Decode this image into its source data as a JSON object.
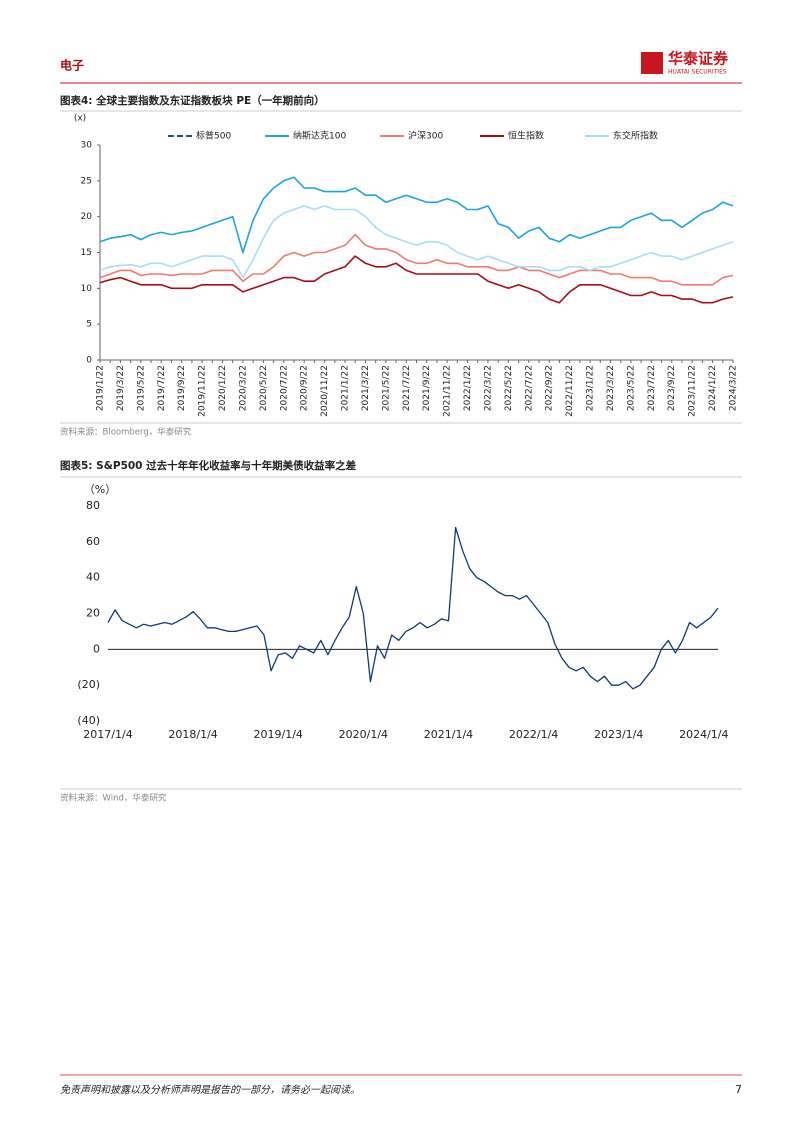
{
  "header": {
    "section": "电子",
    "brand": "华泰证券",
    "brand_en": "HUATAI SECURITIES"
  },
  "chart_data": [
    {
      "type": "line",
      "title": "图表4:  全球主要指数及东证指数板块 PE（一年期前向）",
      "y_label": "(x)",
      "source": "资料来源：Bloomberg，华泰研究",
      "ylim": [
        0,
        30
      ],
      "yticks": [
        0,
        5,
        10,
        15,
        20,
        25,
        30
      ],
      "grid": false,
      "categories": [
        "2019/1/22",
        null,
        "2019/3/22",
        null,
        "2019/5/22",
        null,
        "2019/7/22",
        null,
        "2019/9/22",
        null,
        "2019/11/22",
        null,
        "2020/1/22",
        null,
        "2020/3/22",
        null,
        "2020/5/22",
        null,
        "2020/7/22",
        null,
        "2020/9/22",
        null,
        "2020/11/22",
        null,
        "2021/1/22",
        null,
        "2021/3/22",
        null,
        "2021/5/22",
        null,
        "2021/7/22",
        null,
        "2021/9/22",
        null,
        "2021/11/22",
        null,
        "2022/1/22",
        null,
        "2022/3/22",
        null,
        "2022/5/22",
        null,
        "2022/7/22",
        null,
        "2022/9/22",
        null,
        "2022/11/22",
        null,
        "2023/1/22",
        null,
        "2023/3/22",
        null,
        "2023/5/22",
        null,
        "2023/7/22",
        null,
        "2023/9/22",
        null,
        "2023/11/22",
        null,
        "2024/1/22",
        null,
        "2024/3/22"
      ],
      "series": [
        {
          "name": "标普500",
          "color": "#1f4e9a",
          "dashed": true,
          "values": [
            null,
            null,
            null,
            null,
            null,
            null,
            null,
            null,
            null,
            null,
            null,
            null,
            null,
            null,
            null,
            null,
            null,
            null,
            null,
            null,
            null,
            null,
            null,
            null,
            null,
            null,
            null,
            null,
            null,
            null,
            null,
            null,
            null,
            null,
            null,
            null,
            null,
            null,
            null,
            null,
            null,
            null,
            null,
            null,
            null,
            null,
            null,
            null,
            null,
            null,
            null,
            null,
            null,
            null,
            null,
            null,
            null,
            null,
            null,
            null,
            null,
            null,
            null
          ]
        },
        {
          "name": "纳斯达克100",
          "color": "#1ea3dc",
          "dashed": false,
          "values": [
            16.5,
            17,
            17.2,
            17.5,
            16.8,
            17.5,
            17.8,
            17.5,
            17.8,
            18,
            18.5,
            19,
            19.5,
            20,
            15,
            19.5,
            22.5,
            24,
            25,
            25.5,
            24,
            24,
            23.5,
            23.5,
            23.5,
            24,
            23,
            23,
            22,
            22.5,
            23,
            22.5,
            22,
            22,
            22.5,
            22,
            21,
            21,
            21.5,
            19,
            18.5,
            17,
            18,
            18.5,
            17,
            16.5,
            17.5,
            17,
            17.5,
            18,
            18.5,
            18.5,
            19.5,
            20,
            20.5,
            19.5,
            19.5,
            18.5,
            19.5,
            20.5,
            21,
            22,
            21.5
          ]
        },
        {
          "name": "沪深300",
          "color": "#f07a6e",
          "dashed": false,
          "values": [
            11.5,
            12,
            12.5,
            12.5,
            11.8,
            12,
            12,
            11.8,
            12,
            12,
            12,
            12.5,
            12.5,
            12.5,
            11,
            12,
            12,
            13,
            14.5,
            15,
            14.5,
            15,
            15,
            15.5,
            16,
            17.5,
            16,
            15.5,
            15.5,
            15,
            14,
            13.5,
            13.5,
            14,
            13.5,
            13.5,
            13,
            13,
            13,
            12.5,
            12.5,
            13,
            12.5,
            12.5,
            12,
            11.5,
            12,
            12.5,
            12.5,
            12.5,
            12,
            12,
            11.5,
            11.5,
            11.5,
            11,
            11,
            10.5,
            10.5,
            10.5,
            10.5,
            11.5,
            11.8
          ]
        },
        {
          "name": "恒生指数",
          "color": "#a50f15",
          "dashed": false,
          "values": [
            10.8,
            11.2,
            11.5,
            11,
            10.5,
            10.5,
            10.5,
            10,
            10,
            10,
            10.5,
            10.5,
            10.5,
            10.5,
            9.5,
            10,
            10.5,
            11,
            11.5,
            11.5,
            11,
            11,
            12,
            12.5,
            13,
            14.5,
            13.5,
            13,
            13,
            13.5,
            12.5,
            12,
            12,
            12,
            12,
            12,
            12,
            12,
            11,
            10.5,
            10,
            10.5,
            10,
            9.5,
            8.5,
            8,
            9.5,
            10.5,
            10.5,
            10.5,
            10,
            9.5,
            9,
            9,
            9.5,
            9,
            9,
            8.5,
            8.5,
            8,
            8,
            8.5,
            8.8
          ]
        },
        {
          "name": "东交所指数",
          "color": "#a8def5",
          "dashed": false,
          "values": [
            12.5,
            13,
            13.2,
            13.3,
            13,
            13.5,
            13.5,
            13,
            13.5,
            14,
            14.5,
            14.5,
            14.5,
            14,
            11.5,
            14,
            17,
            19.5,
            20.5,
            21,
            21.5,
            21,
            21.5,
            21,
            21,
            21,
            20,
            18.5,
            17.5,
            17,
            16.5,
            16,
            16.5,
            16.5,
            16,
            15,
            14.5,
            14,
            14.5,
            14,
            13.5,
            13,
            13,
            13,
            12.5,
            12.5,
            13,
            13,
            12.5,
            13,
            13,
            13.5,
            14,
            14.5,
            15,
            14.5,
            14.5,
            14,
            14.5,
            15,
            15.5,
            16,
            16.5
          ]
        }
      ]
    },
    {
      "type": "line",
      "title": "图表5:  S&P500 过去十年年化收益率与十年期美债收益率之差",
      "y_label": "（%）",
      "source": "资料来源：Wind，华泰研究",
      "ylim": [
        -40,
        80
      ],
      "yticks": [
        {
          "value": -40,
          "label": "(40)"
        },
        {
          "value": -20,
          "label": "(20)"
        },
        0,
        20,
        40,
        60,
        80
      ],
      "grid": false,
      "categories": [
        "2017/1/4",
        null,
        null,
        null,
        null,
        null,
        null,
        null,
        null,
        null,
        null,
        null,
        "2018/1/4",
        null,
        null,
        null,
        null,
        null,
        null,
        null,
        null,
        null,
        null,
        null,
        "2019/1/4",
        null,
        null,
        null,
        null,
        null,
        null,
        null,
        null,
        null,
        null,
        null,
        "2020/1/4",
        null,
        null,
        null,
        null,
        null,
        null,
        null,
        null,
        null,
        null,
        null,
        "2021/1/4",
        null,
        null,
        null,
        null,
        null,
        null,
        null,
        null,
        null,
        null,
        null,
        "2022/1/4",
        null,
        null,
        null,
        null,
        null,
        null,
        null,
        null,
        null,
        null,
        null,
        "2023/1/4",
        null,
        null,
        null,
        null,
        null,
        null,
        null,
        null,
        null,
        null,
        null,
        "2024/1/4",
        null,
        null
      ],
      "series": [
        {
          "name": null,
          "color": "#0f3a7a",
          "dashed": false,
          "values": [
            15,
            22,
            16,
            14,
            12,
            14,
            13,
            14,
            15,
            14,
            16,
            18,
            21,
            17,
            12,
            12,
            11,
            10,
            10,
            11,
            12,
            13,
            8,
            -12,
            -3,
            -2,
            -5,
            2,
            0,
            -2,
            5,
            -3,
            5,
            12,
            18,
            35,
            20,
            -18,
            2,
            -5,
            8,
            5,
            10,
            12,
            15,
            12,
            14,
            17,
            16,
            68,
            55,
            45,
            40,
            38,
            35,
            32,
            30,
            30,
            28,
            30,
            25,
            20,
            15,
            3,
            -5,
            -10,
            -12,
            -10,
            -15,
            -18,
            -15,
            -20,
            -20,
            -18,
            -22,
            -20,
            -15,
            -10,
            0,
            5,
            -2,
            5,
            15,
            12,
            15,
            18,
            23
          ]
        }
      ]
    }
  ],
  "footer": {
    "disclaimer": "免责声明和披露以及分析师声明是报告的一部分，请务必一起阅读。",
    "page": 7
  }
}
